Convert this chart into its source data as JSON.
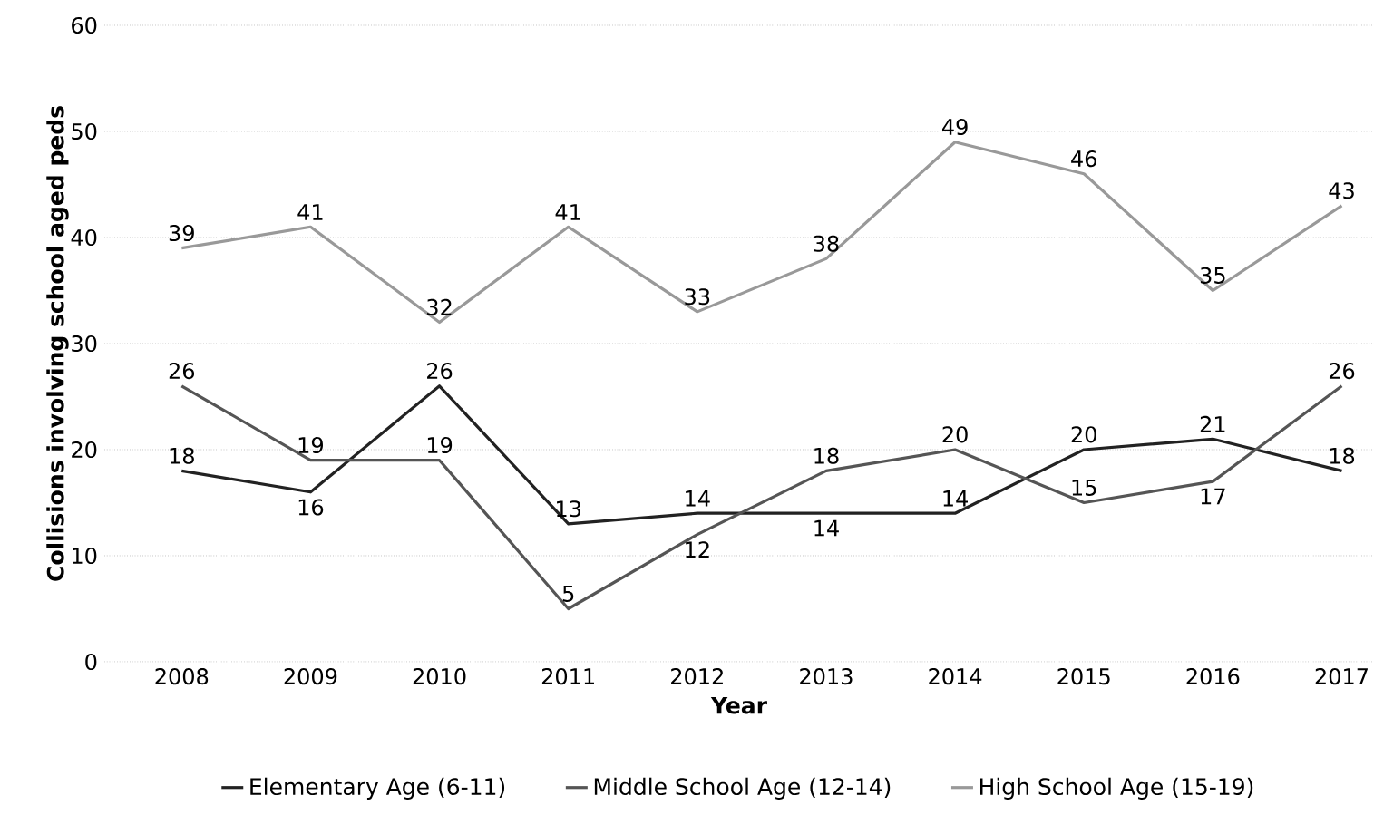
{
  "chart_data": {
    "type": "line",
    "xlabel": "Year",
    "ylabel": "Collisions involving school aged peds",
    "categories": [
      "2008",
      "2009",
      "2010",
      "2011",
      "2012",
      "2013",
      "2014",
      "2015",
      "2016",
      "2017"
    ],
    "series": [
      {
        "name": "Elementary Age (6-11)",
        "color": "#222222",
        "values": [
          18,
          16,
          26,
          13,
          14,
          14,
          14,
          20,
          21,
          18
        ]
      },
      {
        "name": "Middle School Age (12-14)",
        "color": "#555555",
        "values": [
          26,
          19,
          19,
          5,
          12,
          18,
          20,
          15,
          17,
          26
        ]
      },
      {
        "name": "High School Age (15-19)",
        "color": "#999999",
        "values": [
          39,
          41,
          32,
          41,
          33,
          38,
          49,
          46,
          35,
          43
        ]
      }
    ],
    "ylim": [
      0,
      60
    ],
    "yticks": [
      0,
      10,
      20,
      30,
      40,
      50,
      60
    ],
    "grid": "y",
    "legend": "bottom",
    "data_labels": true
  }
}
